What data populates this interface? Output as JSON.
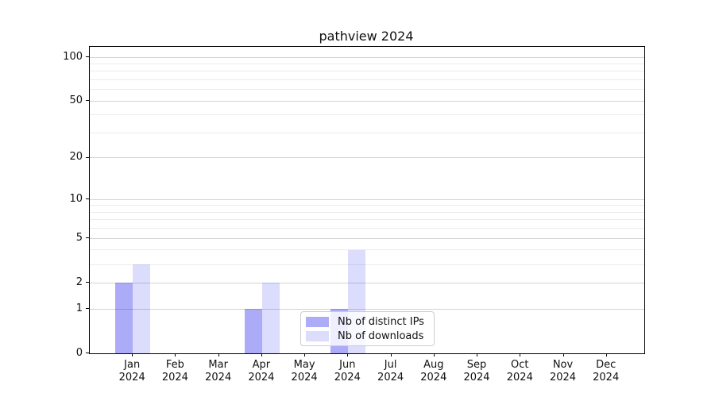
{
  "title": "pathview 2024",
  "axes": {
    "x_tick_year": "2024",
    "x_tick_months": [
      "Jan",
      "Feb",
      "Mar",
      "Apr",
      "May",
      "Jun",
      "Jul",
      "Aug",
      "Sep",
      "Oct",
      "Nov",
      "Dec"
    ],
    "y_tick_labels": [
      "0",
      "1",
      "2",
      "5",
      "10",
      "20",
      "50",
      "100"
    ]
  },
  "legend": {
    "items": [
      {
        "label": "Nb of distinct IPs",
        "swatch": "#acacf8"
      },
      {
        "label": "Nb of downloads",
        "swatch": "#dcdcfb"
      }
    ]
  },
  "colors": {
    "distinct_ips_fill": "rgba(10,10,235,0.34)",
    "downloads_fill": "rgba(10,10,235,0.14)",
    "major_grid": "#d3d3d3",
    "minor_grid": "#ebebeb",
    "spine": "#000000",
    "background": "#ffffff"
  },
  "chart_data": {
    "type": "bar",
    "title": "pathview 2024",
    "categories": [
      "Jan 2024",
      "Feb 2024",
      "Mar 2024",
      "Apr 2024",
      "May 2024",
      "Jun 2024",
      "Jul 2024",
      "Aug 2024",
      "Sep 2024",
      "Oct 2024",
      "Nov 2024",
      "Dec 2024"
    ],
    "series": [
      {
        "name": "Nb of distinct IPs",
        "values": [
          2,
          0,
          0,
          1,
          0,
          1,
          0,
          0,
          0,
          0,
          0,
          0
        ],
        "fill": "rgba(10,10,235,0.34)",
        "solid": "#acacf8"
      },
      {
        "name": "Nb of downloads",
        "values": [
          3,
          0,
          0,
          2,
          0,
          4,
          0,
          0,
          0,
          0,
          0,
          0
        ],
        "fill": "rgba(10,10,235,0.14)",
        "solid": "#dcdcfb"
      }
    ],
    "xlabel": "",
    "ylabel": "",
    "yscale": "log1p",
    "y_major_ticks": [
      0,
      1,
      2,
      5,
      10,
      20,
      50,
      100
    ],
    "y_minor_gridlines": [
      3,
      4,
      6,
      7,
      8,
      9,
      30,
      40,
      60,
      70,
      80,
      90
    ],
    "ylim": [
      0,
      117
    ],
    "grid": true,
    "legend_position": "lower center"
  }
}
